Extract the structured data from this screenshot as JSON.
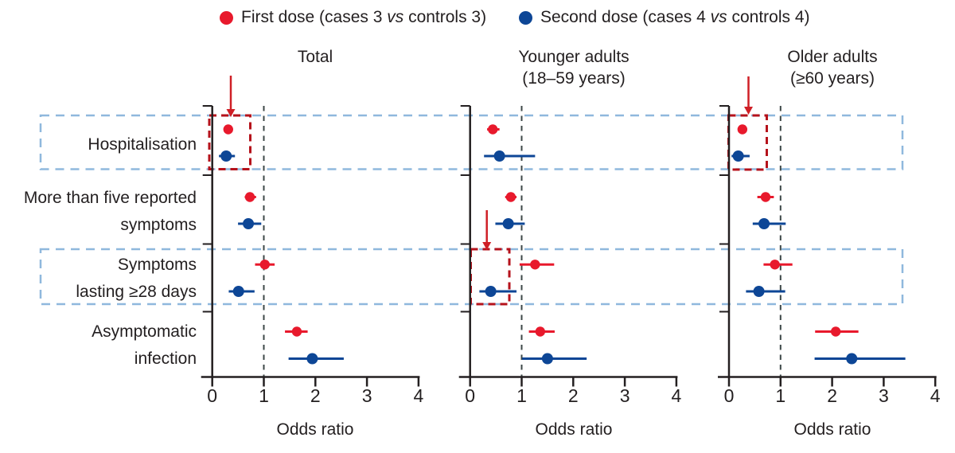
{
  "legend": {
    "items": [
      {
        "name": "first-dose",
        "color": "#e8192c",
        "pre": "First dose (cases 3 ",
        "vs": "vs",
        "post": " controls 3)"
      },
      {
        "name": "second-dose",
        "color": "#0d4696",
        "pre": "Second dose (cases 4 ",
        "vs": "vs",
        "post": " controls 4)"
      }
    ]
  },
  "chart_data": {
    "type": "forest",
    "xlabel": "Odds ratio",
    "x_ticks": [
      "0",
      "1",
      "2",
      "3",
      "4"
    ],
    "xlim": [
      0,
      4
    ],
    "reference_line": 1,
    "grid": false,
    "colors": {
      "first": "#e8192c",
      "second": "#0d4696",
      "row_box": "#8fb8dd",
      "cell_box": "#b5121b",
      "arrow": "#cf1f26",
      "axis": "#231f20",
      "ref_line": "#3c4747"
    },
    "rows": [
      {
        "lines": [
          "Hospitalisation"
        ]
      },
      {
        "lines": [
          "More than five reported",
          "symptoms"
        ]
      },
      {
        "lines": [
          "Symptoms",
          "lasting ≥28 days"
        ]
      },
      {
        "lines": [
          "Asymptomatic",
          "infection"
        ]
      }
    ],
    "series_names": [
      "First dose (cases 3 vs controls 3)",
      "Second dose (cases 4 vs controls 4)"
    ],
    "panels": [
      {
        "title_lines": [
          "Total"
        ],
        "estimates": [
          {
            "first": {
              "or": 0.31,
              "lo": 0.31,
              "hi": 0.31
            },
            "second": {
              "or": 0.27,
              "lo": 0.13,
              "hi": 0.44
            }
          },
          {
            "first": {
              "or": 0.73,
              "lo": 0.63,
              "hi": 0.85
            },
            "second": {
              "or": 0.7,
              "lo": 0.5,
              "hi": 0.95
            }
          },
          {
            "first": {
              "or": 1.02,
              "lo": 0.83,
              "hi": 1.21
            },
            "second": {
              "or": 0.51,
              "lo": 0.32,
              "hi": 0.82
            }
          },
          {
            "first": {
              "or": 1.64,
              "lo": 1.41,
              "hi": 1.85
            },
            "second": {
              "or": 1.94,
              "lo": 1.48,
              "hi": 2.55
            }
          }
        ]
      },
      {
        "title_lines": [
          "Younger adults",
          "(18–59 years)"
        ],
        "estimates": [
          {
            "first": {
              "or": 0.44,
              "lo": 0.33,
              "hi": 0.57
            },
            "second": {
              "or": 0.57,
              "lo": 0.27,
              "hi": 1.26
            }
          },
          {
            "first": {
              "or": 0.79,
              "lo": 0.68,
              "hi": 0.9
            },
            "second": {
              "or": 0.74,
              "lo": 0.49,
              "hi": 1.06
            }
          },
          {
            "first": {
              "or": 1.26,
              "lo": 0.96,
              "hi": 1.63
            },
            "second": {
              "or": 0.4,
              "lo": 0.18,
              "hi": 0.9
            }
          },
          {
            "first": {
              "or": 1.36,
              "lo": 1.14,
              "hi": 1.64
            },
            "second": {
              "or": 1.5,
              "lo": 1.01,
              "hi": 2.26
            }
          }
        ]
      },
      {
        "title_lines": [
          "Older adults",
          "(≥60 years)"
        ],
        "estimates": [
          {
            "first": {
              "or": 0.26,
              "lo": 0.26,
              "hi": 0.26
            },
            "second": {
              "or": 0.18,
              "lo": 0.05,
              "hi": 0.4
            }
          },
          {
            "first": {
              "or": 0.71,
              "lo": 0.55,
              "hi": 0.87
            },
            "second": {
              "or": 0.68,
              "lo": 0.46,
              "hi": 1.1
            }
          },
          {
            "first": {
              "or": 0.89,
              "lo": 0.67,
              "hi": 1.23
            },
            "second": {
              "or": 0.58,
              "lo": 0.33,
              "hi": 1.09
            }
          },
          {
            "first": {
              "or": 2.07,
              "lo": 1.67,
              "hi": 2.51
            },
            "second": {
              "or": 2.38,
              "lo": 1.66,
              "hi": 3.42
            }
          }
        ]
      }
    ],
    "highlights": {
      "row_boxes": [
        {
          "row": "Hospitalisation"
        },
        {
          "row": "Symptoms lasting ≥28 days"
        }
      ],
      "cell_boxes": [
        {
          "panel": "Total",
          "row": "Hospitalisation"
        },
        {
          "panel": "Younger adults",
          "row": "Symptoms lasting ≥28 days"
        },
        {
          "panel": "Older adults",
          "row": "Hospitalisation"
        }
      ],
      "arrows": [
        {
          "panel": "Total",
          "row": "Hospitalisation"
        },
        {
          "panel": "Younger adults",
          "row": "Symptoms lasting ≥28 days"
        },
        {
          "panel": "Older adults",
          "row": "Hospitalisation"
        }
      ]
    }
  }
}
